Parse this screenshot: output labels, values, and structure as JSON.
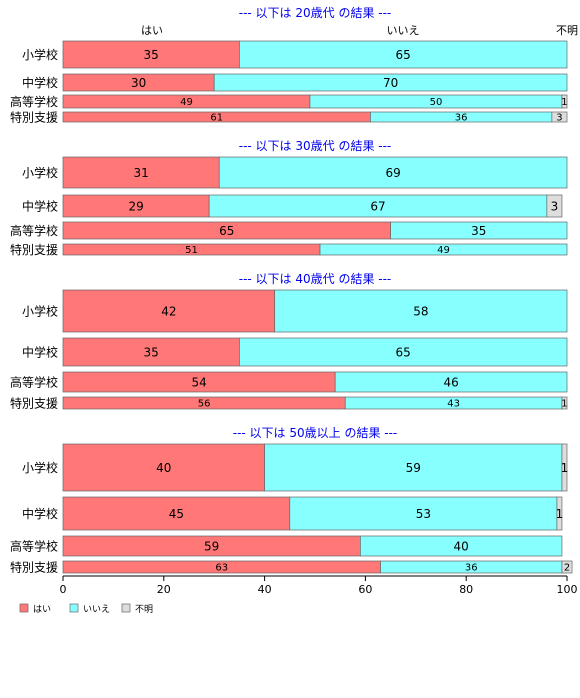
{
  "chart_data": {
    "type": "bar",
    "orientation": "horizontal",
    "stacked": true,
    "percent_stacked": true,
    "top_labels": [
      "はい",
      "いいえ",
      "不明"
    ],
    "categories": [
      "小学校",
      "中学校",
      "高等学校",
      "特別支援"
    ],
    "xlim": [
      0,
      100
    ],
    "xticks": [
      "0",
      "20",
      "40",
      "60",
      "80",
      "100"
    ],
    "legend_placement": "bottom-left",
    "colors": {
      "yes": "#ff7777",
      "no": "#88ffff",
      "unknown": "#dddddd",
      "title": "#0000ee"
    },
    "legend": [
      {
        "key": "yes",
        "label": "はい"
      },
      {
        "key": "no",
        "label": "いいえ"
      },
      {
        "key": "unknown",
        "label": "不明"
      }
    ],
    "panels": [
      {
        "title": "--- 以下は 20歳代 の結果 ---",
        "rows": [
          {
            "category": "小学校",
            "values": [
              35,
              65,
              0
            ],
            "labels": [
              "35",
              "65",
              ""
            ]
          },
          {
            "category": "中学校",
            "values": [
              30,
              70,
              0
            ],
            "labels": [
              "30",
              "70",
              ""
            ]
          },
          {
            "category": "高等学校",
            "values": [
              49,
              50,
              1
            ],
            "labels": [
              "49",
              "50",
              "1"
            ]
          },
          {
            "category": "特別支援",
            "values": [
              61,
              36,
              3
            ],
            "labels": [
              "61",
              "36",
              "3"
            ]
          }
        ]
      },
      {
        "title": "--- 以下は 30歳代 の結果 ---",
        "rows": [
          {
            "category": "小学校",
            "values": [
              31,
              69,
              0
            ],
            "labels": [
              "31",
              "69",
              ""
            ]
          },
          {
            "category": "中学校",
            "values": [
              29,
              67,
              3
            ],
            "labels": [
              "29",
              "67",
              "3"
            ]
          },
          {
            "category": "高等学校",
            "values": [
              65,
              35,
              0
            ],
            "labels": [
              "65",
              "35",
              ""
            ]
          },
          {
            "category": "特別支援",
            "values": [
              51,
              49,
              0
            ],
            "labels": [
              "51",
              "49",
              ""
            ]
          }
        ]
      },
      {
        "title": "--- 以下は 40歳代 の結果 ---",
        "rows": [
          {
            "category": "小学校",
            "values": [
              42,
              58,
              0
            ],
            "labels": [
              "42",
              "58",
              ""
            ]
          },
          {
            "category": "中学校",
            "values": [
              35,
              65,
              0
            ],
            "labels": [
              "35",
              "65",
              ""
            ]
          },
          {
            "category": "高等学校",
            "values": [
              54,
              46,
              0
            ],
            "labels": [
              "54",
              "46",
              ""
            ]
          },
          {
            "category": "特別支援",
            "values": [
              56,
              43,
              1
            ],
            "labels": [
              "56",
              "43",
              "1"
            ]
          }
        ]
      },
      {
        "title": "--- 以下は 50歳以上 の結果 ---",
        "rows": [
          {
            "category": "小学校",
            "values": [
              40,
              59,
              1
            ],
            "labels": [
              "40",
              "59",
              "1"
            ]
          },
          {
            "category": "中学校",
            "values": [
              45,
              53,
              1
            ],
            "labels": [
              "45",
              "53",
              "1"
            ]
          },
          {
            "category": "高等学校",
            "values": [
              59,
              40,
              0
            ],
            "labels": [
              "59",
              "40",
              ""
            ]
          },
          {
            "category": "特別支援",
            "values": [
              63,
              36,
              2
            ],
            "labels": [
              "63",
              "36",
              "2"
            ]
          }
        ]
      }
    ]
  }
}
